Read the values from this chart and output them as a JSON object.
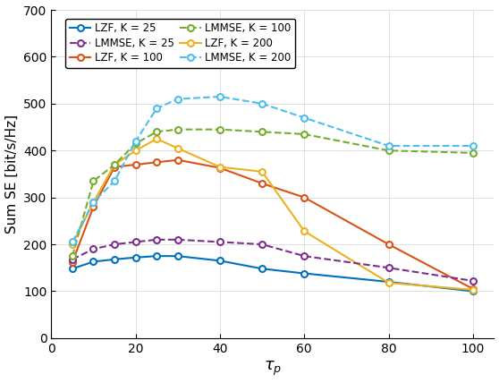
{
  "x": [
    5,
    10,
    15,
    20,
    25,
    30,
    40,
    50,
    60,
    80,
    100
  ],
  "LZF_K25": [
    148,
    163,
    168,
    172,
    175,
    175,
    165,
    148,
    138,
    120,
    100
  ],
  "LZF_K100": [
    162,
    280,
    365,
    370,
    375,
    380,
    363,
    330,
    300,
    200,
    105
  ],
  "LZF_K200": [
    200,
    290,
    370,
    400,
    425,
    405,
    365,
    355,
    228,
    118,
    103
  ],
  "LMMSE_K25": [
    168,
    190,
    200,
    205,
    210,
    210,
    205,
    200,
    175,
    150,
    122
  ],
  "LMMSE_K100": [
    175,
    335,
    370,
    415,
    440,
    445,
    445,
    440,
    435,
    400,
    395
  ],
  "LMMSE_K200": [
    205,
    290,
    335,
    420,
    490,
    510,
    515,
    500,
    470,
    410,
    410
  ],
  "colors": {
    "LZF_K25": "#0072BD",
    "LZF_K100": "#D95319",
    "LZF_K200": "#EDB120",
    "LMMSE_K25": "#7E2F8E",
    "LMMSE_K100": "#77AC30",
    "LMMSE_K200": "#4DBEEE"
  },
  "xlabel": "$\\tau_p$",
  "ylabel": "Sum SE [bit/s/Hz]",
  "ylim": [
    0,
    700
  ],
  "xlim": [
    0,
    105
  ],
  "yticks": [
    0,
    100,
    200,
    300,
    400,
    500,
    600,
    700
  ],
  "xticks": [
    0,
    20,
    40,
    60,
    80,
    100
  ],
  "legend_labels_lzf": [
    "LZF, K = 25",
    "LZF, K = 100",
    "LZF, K = 200"
  ],
  "legend_labels_lmmse": [
    "LMMSE, K = 25",
    "LMMSE, K = 100",
    "LMMSE, K = 200"
  ]
}
